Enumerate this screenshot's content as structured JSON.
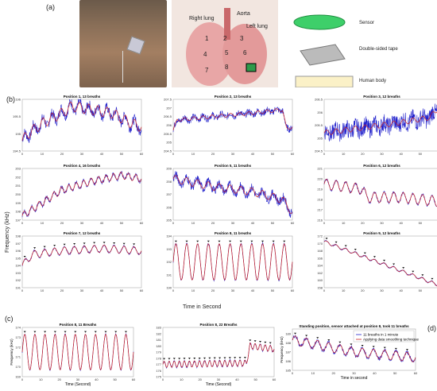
{
  "labels": {
    "a": "(a)",
    "b": "(b)",
    "c": "(c)",
    "d": "(d)"
  },
  "anatomy": {
    "right_lung": "Right lung",
    "aorta": "Aorta",
    "left_lung": "Left lung",
    "nums": [
      "1",
      "2",
      "3",
      "4",
      "5",
      "6",
      "7",
      "8"
    ]
  },
  "legend_layers": {
    "sensor": "Sensor",
    "tape": "Double-sided tape",
    "body": "Human body"
  },
  "axis": {
    "ylabel": "Frequency (kHz)",
    "xlabel": "Time in Second"
  },
  "chart_data": [
    {
      "type": "line",
      "title": "Position 1, 13 breaths",
      "ylim": [
        194.5,
        196
      ],
      "yticks": [
        194.5,
        195,
        195.5,
        196
      ],
      "xticks": [
        0,
        10,
        20,
        30,
        40,
        50,
        60
      ],
      "trend": [
        [
          0,
          194.8
        ],
        [
          3,
          195
        ],
        [
          10,
          195.3
        ],
        [
          20,
          195.6
        ],
        [
          25,
          195.8
        ],
        [
          35,
          195.7
        ],
        [
          45,
          195.6
        ],
        [
          55,
          195.3
        ],
        [
          60,
          195.2
        ]
      ],
      "breaths": 13,
      "amp": 0.15,
      "noise": 0.15,
      "marks": false
    },
    {
      "type": "line",
      "title": "Position 2, 13 breaths",
      "ylim": [
        204.5,
        207.5
      ],
      "yticks": [
        204.5,
        205,
        205.5,
        206,
        206.5,
        207,
        207.5
      ],
      "xticks": [
        0,
        10,
        20,
        30,
        40,
        50,
        60
      ],
      "trend": [
        [
          0,
          205.7
        ],
        [
          2,
          206.3
        ],
        [
          20,
          206.5
        ],
        [
          40,
          206.7
        ],
        [
          55,
          206.9
        ],
        [
          57,
          205.8
        ],
        [
          60,
          205.9
        ]
      ],
      "breaths": 13,
      "amp": 0.1,
      "noise": 0.2,
      "marks": false
    },
    {
      "type": "line",
      "title": "Position 3, 12 breaths",
      "ylim": [
        204.5,
        206.5
      ],
      "yticks": [
        204.5,
        205,
        205.5,
        206,
        206.5
      ],
      "xticks": [
        0,
        10,
        20,
        30,
        40,
        50,
        60
      ],
      "trend": [
        [
          0,
          205.2
        ],
        [
          20,
          205.4
        ],
        [
          40,
          205.6
        ],
        [
          55,
          205.8
        ],
        [
          60,
          206.2
        ]
      ],
      "breaths": 12,
      "amp": 0.1,
      "noise": 0.35,
      "marks": false
    },
    {
      "type": "line",
      "title": "Position 4, 16 breaths",
      "ylim": [
        197,
        203
      ],
      "yticks": [
        197,
        198,
        199,
        200,
        201,
        202,
        203
      ],
      "xticks": [
        0,
        10,
        20,
        30,
        40,
        50,
        60
      ],
      "trend": [
        [
          0,
          197.5
        ],
        [
          10,
          199
        ],
        [
          20,
          200.5
        ],
        [
          35,
          201.5
        ],
        [
          50,
          202.2
        ],
        [
          60,
          201.8
        ]
      ],
      "breaths": 16,
      "amp": 0.4,
      "noise": 0.2,
      "marks": false
    },
    {
      "type": "line",
      "title": "Position 5, 11 breaths",
      "ylim": [
        205,
        209
      ],
      "yticks": [
        205,
        206,
        207,
        208,
        209
      ],
      "xticks": [
        0,
        10,
        20,
        30,
        40,
        50,
        60
      ],
      "trend": [
        [
          0,
          208.2
        ],
        [
          20,
          207.6
        ],
        [
          40,
          207.2
        ],
        [
          55,
          206.6
        ],
        [
          60,
          205.6
        ]
      ],
      "breaths": 11,
      "amp": 0.3,
      "noise": 0.35,
      "marks": false
    },
    {
      "type": "line",
      "title": "Position 6, 12 breaths",
      "ylim": [
        216,
        221
      ],
      "yticks": [
        216,
        217,
        218,
        219,
        220,
        221
      ],
      "xticks": [
        0,
        10,
        20,
        30,
        40,
        50,
        60
      ],
      "trend": [
        [
          0,
          219.5
        ],
        [
          20,
          219
        ],
        [
          22,
          218.2
        ],
        [
          40,
          218.2
        ],
        [
          60,
          217.8
        ]
      ],
      "breaths": 12,
      "amp": 0.5,
      "noise": 0.12,
      "marks": false
    },
    {
      "type": "line",
      "title": "Position 7, 12 breaths",
      "ylim": [
        191,
        198
      ],
      "yticks": [
        191,
        192,
        193,
        194,
        195,
        196,
        197,
        198
      ],
      "xticks": [
        0,
        10,
        20,
        30,
        40,
        50,
        60
      ],
      "trend": [
        [
          0,
          194
        ],
        [
          5,
          195.5
        ],
        [
          20,
          196
        ],
        [
          40,
          196.3
        ],
        [
          60,
          196
        ]
      ],
      "breaths": 12,
      "amp": 0.5,
      "noise": 0.12,
      "marks": true
    },
    {
      "type": "line",
      "title": "Position 8, 11 breaths",
      "ylim": [
        190,
        194
      ],
      "yticks": [
        190,
        191,
        192,
        193,
        194
      ],
      "xticks": [
        0,
        10,
        20,
        30,
        40,
        50,
        60
      ],
      "trend": [
        [
          0,
          192
        ],
        [
          60,
          192
        ]
      ],
      "breaths": 11,
      "amp": 1.4,
      "noise": 0.1,
      "marks": true
    },
    {
      "type": "line",
      "title": "Position 9, 12 breaths",
      "ylim": [
        158,
        172
      ],
      "yticks": [
        158,
        160,
        162,
        164,
        166,
        168,
        170,
        172
      ],
      "xticks": [
        0,
        10,
        20,
        30,
        40,
        50,
        60
      ],
      "trend": [
        [
          0,
          170.5
        ],
        [
          60,
          158.6
        ]
      ],
      "breaths": 12,
      "amp": 0.4,
      "noise": 0.15,
      "marks": true
    },
    {
      "type": "line",
      "title": "Position 8, 11 Breaths",
      "xlabel": "Time (Second)",
      "ylabel": "Frequency (kHz)",
      "ylim": [
        169,
        174
      ],
      "yticks": [
        169,
        170,
        171,
        172,
        173,
        174
      ],
      "xticks": [
        0,
        10,
        20,
        30,
        40,
        50,
        60
      ],
      "trend": [
        [
          0,
          171.5
        ],
        [
          60,
          171.5
        ]
      ],
      "breaths": 11,
      "amp": 1.8,
      "noise": 0.08,
      "marks": true
    },
    {
      "type": "line",
      "title": "Position 8, 22 Breaths",
      "xlabel": "Time (Second)",
      "ylim": [
        175,
        183
      ],
      "yticks": [
        175,
        176,
        177,
        178,
        179,
        180,
        181,
        182,
        183
      ],
      "xticks": [
        0,
        10,
        20,
        30,
        40,
        50,
        60
      ],
      "trend": [
        [
          0,
          177
        ],
        [
          45,
          177.2
        ],
        [
          47,
          180
        ],
        [
          60,
          179.5
        ]
      ],
      "breaths": 22,
      "amp": 0.5,
      "noise": 0.15,
      "marks": true
    },
    {
      "type": "line",
      "title": "Standing position, sensor attached at position 8, took 11 breaths",
      "xlabel": "Time in second",
      "ylabel": "Frequency (kHz)",
      "ylim": [
        185,
        189.5
      ],
      "yticks": [
        185,
        186,
        187,
        188,
        189
      ],
      "xticks": [
        0,
        10,
        20,
        30,
        40,
        50,
        60
      ],
      "trend": [
        [
          0,
          188.3
        ],
        [
          30,
          187
        ],
        [
          60,
          186.4
        ]
      ],
      "breaths": 11,
      "amp": 0.5,
      "noise": 0.2,
      "marks": true,
      "legend": [
        "11 breaths in 1 minute",
        "Applying data smoothing technique"
      ]
    }
  ]
}
